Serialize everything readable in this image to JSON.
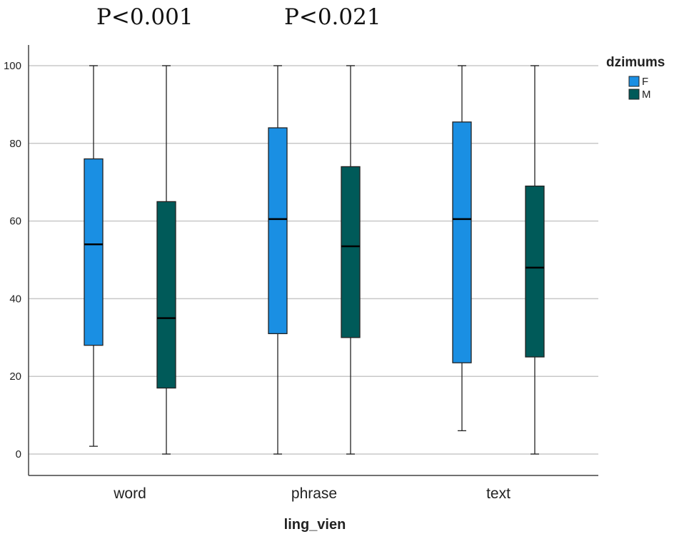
{
  "annotations": [
    "P<0.001",
    "P<0.021"
  ],
  "chart_data": {
    "type": "boxplot",
    "title": "",
    "xlabel": "ling_vien",
    "ylabel": "",
    "categories": [
      "word",
      "phrase",
      "text"
    ],
    "y_ticks": [
      "0",
      "20",
      "40",
      "60",
      "80",
      "100"
    ],
    "ylim": [
      -5.5,
      104
    ],
    "grid": true,
    "legend": {
      "title": "dzimums",
      "placement": "top-right"
    },
    "series": [
      {
        "name": "F",
        "color": "#1a8fe3",
        "boxes": [
          {
            "min": 2,
            "q1": 28,
            "median": 54,
            "q3": 76,
            "max": 100
          },
          {
            "min": 0,
            "q1": 31,
            "median": 60.5,
            "q3": 84,
            "max": 100
          },
          {
            "min": 6,
            "q1": 23.5,
            "median": 60.5,
            "q3": 85.5,
            "max": 100
          }
        ]
      },
      {
        "name": "M",
        "color": "#005a59",
        "boxes": [
          {
            "min": 0,
            "q1": 17,
            "median": 35,
            "q3": 65,
            "max": 100
          },
          {
            "min": 0,
            "q1": 30,
            "median": 53.5,
            "q3": 74,
            "max": 100
          },
          {
            "min": 0,
            "q1": 25,
            "median": 48,
            "q3": 69,
            "max": 100
          }
        ]
      }
    ]
  }
}
